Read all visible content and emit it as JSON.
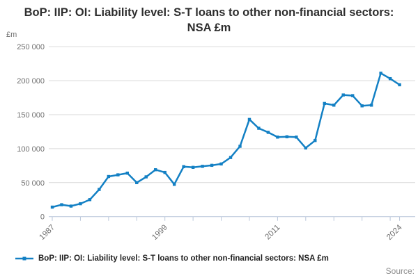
{
  "page": {
    "title": "BoP: IIP: OI: Liability level: S-T loans to other non-financial sectors: NSA £m",
    "source_label": "Source:"
  },
  "legend": {
    "label": "BoP: IIP: OI: Liability level: S-T loans to other non-financial sectors: NSA £m"
  },
  "chart_data": {
    "type": "line",
    "title": "BoP: IIP: OI: Liability level: S-T loans to other non-financial sectors: NSA £m",
    "xlabel": "",
    "ylabel": "£m",
    "ylim": [
      0,
      250000
    ],
    "grid": "horizontal",
    "legend_position": "bottom",
    "marker": "square",
    "line_color": "#1380c4",
    "grid_color": "#d9d9d9",
    "axis_color": "#b9c6da",
    "tick_label_color": "#6e6e6e",
    "yticks": [
      {
        "value": 0,
        "label": "0"
      },
      {
        "value": 50000,
        "label": "50 000"
      },
      {
        "value": 100000,
        "label": "100 000"
      },
      {
        "value": 150000,
        "label": "150 000"
      },
      {
        "value": 200000,
        "label": "200 000"
      },
      {
        "value": 250000,
        "label": "250 000"
      }
    ],
    "xtick_years": [
      1987,
      1990,
      1993,
      1996,
      1999,
      2002,
      2005,
      2008,
      2011,
      2014,
      2017,
      2020,
      2023,
      2024
    ],
    "xtick_labeled_years": [
      1987,
      1999,
      2011,
      2024
    ],
    "x": [
      1987,
      1988,
      1989,
      1990,
      1991,
      1992,
      1993,
      1994,
      1995,
      1996,
      1997,
      1998,
      1999,
      2000,
      2001,
      2002,
      2003,
      2004,
      2005,
      2006,
      2007,
      2008,
      2009,
      2010,
      2011,
      2012,
      2013,
      2014,
      2015,
      2016,
      2017,
      2018,
      2019,
      2020,
      2021,
      2022,
      2023,
      2024
    ],
    "values": [
      14000,
      17500,
      15500,
      19000,
      25000,
      40000,
      59000,
      61500,
      64000,
      50000,
      58500,
      69000,
      65000,
      47500,
      73500,
      72500,
      74000,
      75500,
      77500,
      87000,
      103500,
      143000,
      130000,
      124000,
      117000,
      117500,
      117000,
      101000,
      112000,
      166500,
      164000,
      179000,
      178000,
      163000,
      164000,
      211000,
      203000,
      194000
    ]
  }
}
